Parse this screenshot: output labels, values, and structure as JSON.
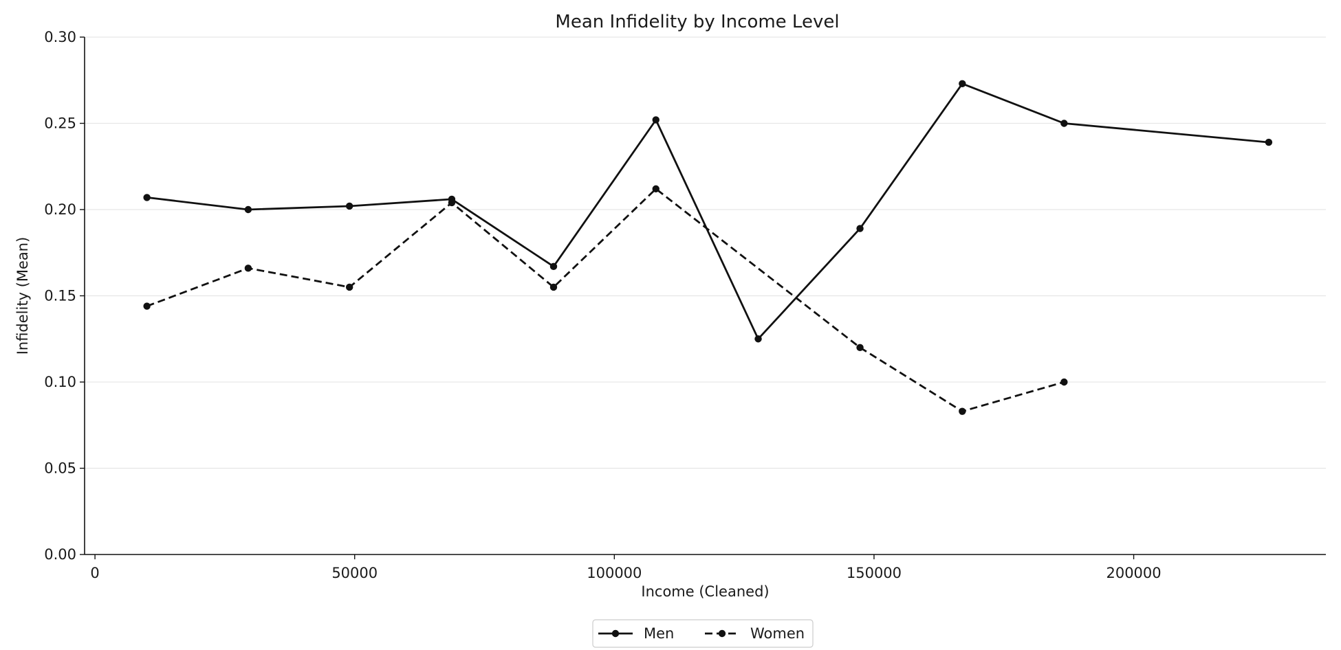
{
  "chart_data": {
    "type": "line",
    "title": "Mean Infidelity by Income Level",
    "xlabel": "Income (Cleaned)",
    "ylabel": "Infidelity (Mean)",
    "xlim": [
      -2000,
      237000
    ],
    "ylim": [
      0,
      0.3
    ],
    "xticks": [
      0,
      50000,
      100000,
      150000,
      200000
    ],
    "xtick_labels": [
      "0",
      "50000",
      "100000",
      "150000",
      "200000"
    ],
    "yticks": [
      0,
      0.05,
      0.1,
      0.15,
      0.2,
      0.25,
      0.3
    ],
    "ytick_labels": [
      "0.00",
      "0.05",
      "0.10",
      "0.15",
      "0.20",
      "0.25",
      "0.30"
    ],
    "grid": "horizontal",
    "legend_position": "bottom-center",
    "series": [
      {
        "name": "Men",
        "line_style": "solid",
        "marker": "circle",
        "color": "#111111",
        "x": [
          10000,
          29500,
          49000,
          68700,
          88300,
          108000,
          127700,
          147300,
          167000,
          186600,
          226000
        ],
        "y": [
          0.207,
          0.2,
          0.202,
          0.206,
          0.167,
          0.252,
          0.125,
          0.189,
          0.273,
          0.25,
          0.239
        ]
      },
      {
        "name": "Women",
        "line_style": "dashed",
        "marker": "circle",
        "color": "#111111",
        "x": [
          10000,
          29500,
          49000,
          68700,
          88300,
          108000,
          147300,
          167000,
          186600
        ],
        "y": [
          0.144,
          0.166,
          0.155,
          0.204,
          0.155,
          0.212,
          0.12,
          0.083,
          0.1
        ]
      }
    ]
  }
}
